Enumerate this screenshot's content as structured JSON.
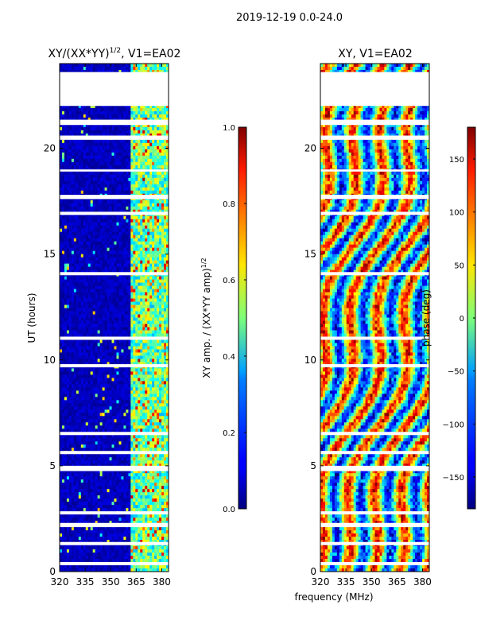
{
  "figure": {
    "suptitle": "2019-12-19 0.0-24.0",
    "shared_xlabel": "frequency (MHz)"
  },
  "colormap": "jet",
  "colors": {
    "missing_rows": "#ffffff",
    "axes_frame": "#000000"
  },
  "chart_data": [
    {
      "type": "heatmap",
      "title": "XY/(XX*YY)^{1/2}, V1=EA02",
      "xlabel": "",
      "ylabel": "UT (hours)",
      "xlim": [
        320,
        384
      ],
      "ylim": [
        0,
        24
      ],
      "x_ticks": [
        320,
        335,
        350,
        365,
        380
      ],
      "y_ticks": [
        0,
        5,
        10,
        15,
        20
      ],
      "colorbar": {
        "label": "XY amp. / (XX*YY amp)^{1/2}",
        "range": [
          0.0,
          1.0
        ],
        "ticks": [
          0.0,
          0.2,
          0.4,
          0.6,
          0.8,
          1.0
        ],
        "tick_labels": [
          "0.0",
          "0.2",
          "0.4",
          "0.6",
          "0.8",
          "1.0"
        ]
      },
      "gaps_hours": [
        [
          0.3,
          0.45
        ],
        [
          1.25,
          1.4
        ],
        [
          2.1,
          2.3
        ],
        [
          2.7,
          2.85
        ],
        [
          4.75,
          5.0
        ],
        [
          5.55,
          5.7
        ],
        [
          6.45,
          6.6
        ],
        [
          9.65,
          9.8
        ],
        [
          10.95,
          11.1
        ],
        [
          14.0,
          14.15
        ],
        [
          16.85,
          17.0
        ],
        [
          17.6,
          17.8
        ],
        [
          18.9,
          19.0
        ],
        [
          20.4,
          20.6
        ],
        [
          21.1,
          21.35
        ],
        [
          22.0,
          23.6
        ]
      ],
      "notes": "Mostly low values (dark blue) below 362 MHz; elevated values (cyan to red) in 362-383 MHz band"
    },
    {
      "type": "heatmap",
      "title": "XY, V1=EA02",
      "xlabel": "frequency (MHz)",
      "ylabel": "",
      "xlim": [
        320,
        384
      ],
      "ylim": [
        0,
        24
      ],
      "x_ticks": [
        320,
        335,
        350,
        365,
        380
      ],
      "y_ticks": [
        0,
        5,
        10,
        15,
        20
      ],
      "colorbar": {
        "label": "phase (deg)",
        "range": [
          -180,
          180
        ],
        "ticks": [
          -150,
          -100,
          -50,
          0,
          50,
          100,
          150
        ],
        "tick_labels": [
          "−150",
          "−100",
          "−50",
          "0",
          "50",
          "100",
          "150"
        ]
      },
      "gaps_hours": [
        [
          0.3,
          0.45
        ],
        [
          1.25,
          1.4
        ],
        [
          2.1,
          2.3
        ],
        [
          2.7,
          2.85
        ],
        [
          4.75,
          5.0
        ],
        [
          5.55,
          5.7
        ],
        [
          6.45,
          6.6
        ],
        [
          9.65,
          9.8
        ],
        [
          10.95,
          11.1
        ],
        [
          14.0,
          14.15
        ],
        [
          16.85,
          17.0
        ],
        [
          17.6,
          17.8
        ],
        [
          18.9,
          19.0
        ],
        [
          20.4,
          20.6
        ],
        [
          21.1,
          21.35
        ],
        [
          22.0,
          23.6
        ]
      ],
      "notes": "Phase varies broadly across full range; mottled structure"
    }
  ]
}
